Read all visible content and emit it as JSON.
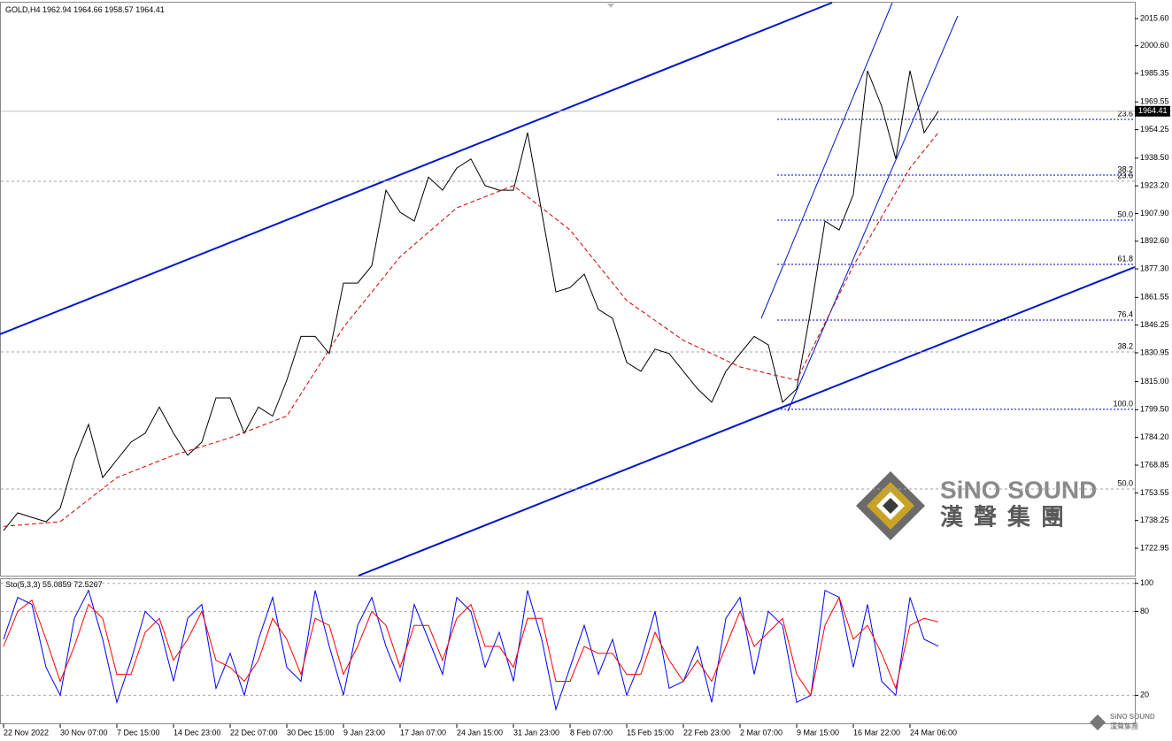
{
  "chart_data": [
    {
      "type": "line",
      "title": "GOLD,H4",
      "ohlc": [
        1962.94,
        1964.66,
        1958.57,
        1964.41
      ],
      "last_price": 1964.41,
      "xlim": [
        0,
        80
      ],
      "ylim": [
        1708.3,
        2024.4
      ],
      "grid": false,
      "yticks": [
        1722.95,
        1738.25,
        1753.55,
        1768.85,
        {
          "value": 1784.2,
          "label": "1784.20"
        },
        {
          "value": 1799.5,
          "label": "1799.50"
        },
        {
          "value": 1815,
          "label": "1815.00"
        },
        1830.95,
        1846.25,
        1861.55,
        {
          "value": 1877.3,
          "label": "1877.30"
        },
        {
          "value": 1892.6,
          "label": "1892.60"
        },
        {
          "value": 1907.9,
          "label": "1907.90"
        },
        {
          "value": 1923.2,
          "label": "1923.20"
        },
        {
          "value": 1938.5,
          "label": "1938.50"
        },
        1954.25,
        1969.55,
        1985.35,
        {
          "value": 2000.6,
          "label": "2000.60"
        },
        {
          "value": 2015.6,
          "label": "2015.60"
        }
      ],
      "series": [
        {
          "name": "Close",
          "color": "#000000",
          "values": [
            1732.7,
            1742.5,
            1740,
            1737.6,
            1745,
            1771.8,
            1791.4,
            1762,
            1771.8,
            1781.6,
            1786.5,
            1801,
            1786.5,
            1774.3,
            1781.6,
            1806,
            1806,
            1786.5,
            1801,
            1796,
            1815.8,
            1840,
            1840,
            1830.5,
            1869.5,
            1869.5,
            1879,
            1920.8,
            1908.6,
            1903.7,
            1928,
            1920.8,
            1933,
            1938,
            1923.3,
            1920.8,
            1920.8,
            1952.6,
            1908.6,
            1864.6,
            1867,
            1874.4,
            1854.9,
            1850,
            1825.6,
            1820.7,
            1833,
            1830.5,
            1820.7,
            1811,
            1803.6,
            1820.7,
            1830.5,
            1840,
            1835.3,
            1803.6,
            1811,
            1854.9,
            1903.7,
            1898.8,
            1918.4,
            1986.8,
            1967.2,
            1938,
            1986.8,
            1952.6,
            1964.41
          ]
        },
        {
          "name": "MA",
          "color": "#d00000",
          "dash": true,
          "x": [
            0,
            4,
            8,
            12,
            16,
            20,
            24,
            28,
            32,
            36,
            40,
            44,
            48,
            52,
            56,
            60,
            64,
            66
          ],
          "values": [
            1735,
            1737.6,
            1762,
            1774.3,
            1784,
            1796,
            1845,
            1884,
            1911,
            1923.3,
            1898.8,
            1859.8,
            1837.8,
            1823.1,
            1815.8,
            1879,
            1933,
            1952.6
          ]
        }
      ],
      "fib_levels": [
        {
          "label": "23.6",
          "value": 1959.9,
          "color": "#0000c0"
        },
        {
          "label": "38.2",
          "value": 1929.1,
          "color": "#0000c0"
        },
        {
          "label": "50.0",
          "value": 1904.2,
          "color": "#0000c0"
        },
        {
          "label": "61.8",
          "value": 1879.8,
          "color": "#0000c0"
        },
        {
          "label": "76.4",
          "value": 1849,
          "color": "#0000c0"
        },
        {
          "label": "100.0",
          "value": 1799.7,
          "color": "#0000c0"
        },
        {
          "label": "23.6",
          "value": 1925.7,
          "color": "#a0a0a0"
        },
        {
          "label": "38.2",
          "value": 1831.4,
          "color": "#a0a0a0"
        },
        {
          "label": "50.0",
          "value": 1755.7,
          "color": "#a0a0a0"
        }
      ]
    },
    {
      "type": "line",
      "title": "Sto(5,3,3)",
      "xlim": [
        0,
        80
      ],
      "ylim": [
        0,
        103
      ],
      "grid": true,
      "yticks": [
        20,
        80,
        100
      ],
      "xticks": [
        {
          "value": 0,
          "label": "22 Nov 2022"
        },
        {
          "value": 4,
          "label": "30 Nov 07:00"
        },
        {
          "value": 8,
          "label": "7 Dec 15:00"
        },
        {
          "value": 12,
          "label": "14 Dec 23:00"
        },
        {
          "value": 16,
          "label": "22 Dec 07:00"
        },
        {
          "value": 20,
          "label": "30 Dec 15:00"
        },
        {
          "value": 24,
          "label": "9 Jan 23:00"
        },
        {
          "value": 28,
          "label": "17 Jan 07:00"
        },
        {
          "value": 32,
          "label": "24 Jan 15:00"
        },
        {
          "value": 36,
          "label": "31 Jan 23:00"
        },
        {
          "value": 40,
          "label": "8 Feb 07:00"
        },
        {
          "value": 44,
          "label": "15 Feb 15:00"
        },
        {
          "value": 48,
          "label": "22 Feb 23:00"
        },
        {
          "value": 52,
          "label": "2 Mar 07:00"
        },
        {
          "value": 56,
          "label": "9 Mar 15:00"
        },
        {
          "value": 60,
          "label": "16 Mar 22:00"
        },
        {
          "value": 64,
          "label": "24 Mar 06:00"
        }
      ],
      "series": [
        {
          "name": "Main",
          "color": "#0000ff",
          "values": [
            60,
            90,
            85,
            40,
            20,
            75,
            95,
            60,
            15,
            45,
            80,
            70,
            30,
            75,
            85,
            25,
            50,
            20,
            60,
            90,
            40,
            30,
            95,
            55,
            20,
            70,
            90,
            55,
            30,
            85,
            60,
            35,
            90,
            80,
            40,
            65,
            30,
            95,
            60,
            10,
            40,
            70,
            35,
            60,
            20,
            45,
            80,
            25,
            30,
            55,
            15,
            75,
            90,
            35,
            80,
            70,
            15,
            20,
            95,
            90,
            40,
            85,
            30,
            20,
            90,
            60,
            55.0859
          ]
        },
        {
          "name": "Signal",
          "color": "#ff0000",
          "values": [
            55,
            80,
            88,
            60,
            30,
            55,
            85,
            75,
            35,
            35,
            65,
            75,
            45,
            60,
            80,
            45,
            40,
            30,
            45,
            75,
            60,
            35,
            75,
            70,
            35,
            55,
            80,
            70,
            40,
            70,
            70,
            45,
            75,
            85,
            55,
            55,
            40,
            75,
            75,
            30,
            30,
            55,
            50,
            50,
            35,
            35,
            65,
            45,
            30,
            45,
            30,
            55,
            80,
            55,
            65,
            75,
            35,
            20,
            70,
            90,
            60,
            70,
            50,
            25,
            70,
            75,
            72.5267
          ]
        }
      ]
    }
  ],
  "logo": {
    "brand": "SiNO SOUND",
    "chinese": "漢聲集團"
  }
}
